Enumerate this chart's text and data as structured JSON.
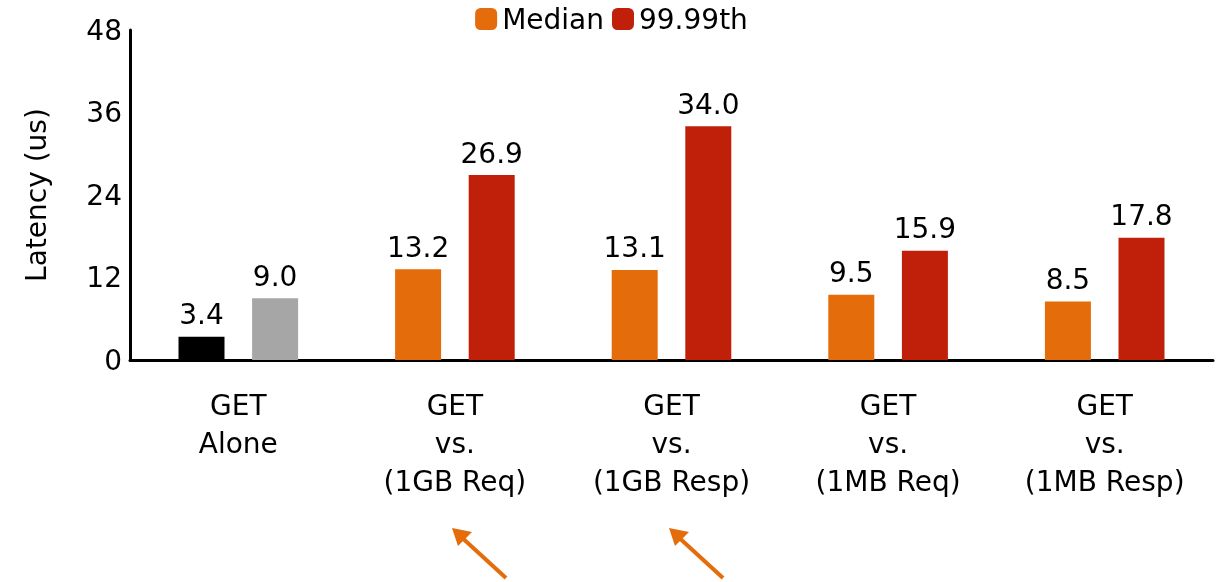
{
  "chart_data": {
    "type": "bar",
    "ylabel": "Latency (us)",
    "categories": [
      "GET\nAlone",
      "GET\nvs.\n(1GB Req)",
      "GET\nvs.\n(1GB Resp)",
      "GET\nvs.\n(1MB Req)",
      "GET\nvs.\n(1MB Resp)"
    ],
    "series": [
      {
        "name": "Median",
        "color": "#e46c0a",
        "colors": [
          "#000000",
          "#e46c0a",
          "#e46c0a",
          "#e46c0a",
          "#e46c0a"
        ],
        "values": [
          3.4,
          13.2,
          13.1,
          9.5,
          8.5
        ],
        "value_labels": [
          "3.4",
          "13.2",
          "13.1",
          "9.5",
          "8.5"
        ]
      },
      {
        "name": "99.99th",
        "color": "#c0200a",
        "colors": [
          "#a6a6a6",
          "#c0200a",
          "#c0200a",
          "#c0200a",
          "#c0200a"
        ],
        "values": [
          9.0,
          26.9,
          34.0,
          15.9,
          17.8
        ],
        "value_labels": [
          "9.0",
          "26.9",
          "34.0",
          "15.9",
          "17.8"
        ]
      }
    ],
    "ylim": [
      0,
      48
    ],
    "yticks": [
      0,
      12,
      24,
      36,
      48
    ],
    "grid": false,
    "legend": "top"
  }
}
